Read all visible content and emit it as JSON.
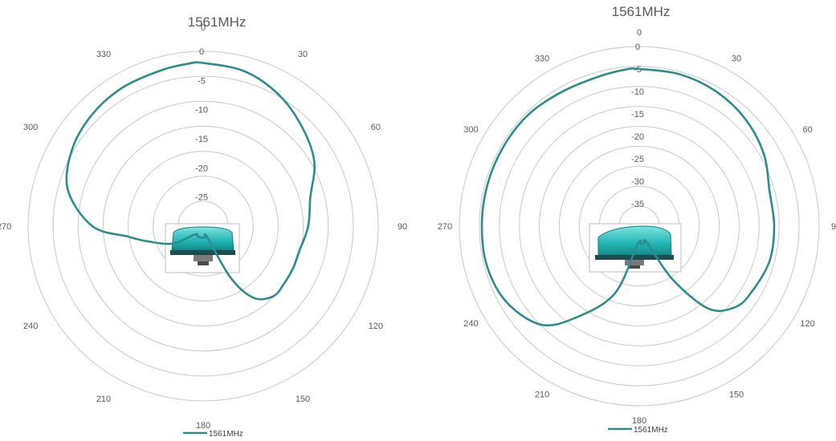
{
  "colors": {
    "series": "#2e8b8f",
    "grid": "#c8c8c8",
    "text": "#595959",
    "antenna": "#33c2c0"
  },
  "chart_data": [
    {
      "type": "polar-line",
      "title": "1561MHz",
      "angle_labels": [
        "0",
        "30",
        "60",
        "90",
        "120",
        "150",
        "180",
        "210",
        "240",
        "270",
        "300",
        "330"
      ],
      "radial_ticks": [
        "0",
        "-5",
        "-10",
        "-15",
        "-20",
        "-25"
      ],
      "rlim": [
        -30,
        0
      ],
      "legend": "bottom",
      "legend_label": "1561MHz",
      "series": [
        {
          "name": "1561MHz",
          "theta": [
            0,
            15,
            30,
            45,
            60,
            75,
            90,
            105,
            115,
            125,
            135,
            145,
            152,
            160,
            170,
            180,
            190,
            200,
            210,
            225,
            240,
            255,
            262,
            270,
            285,
            300,
            315,
            330,
            345,
            355
          ],
          "r": [
            -2,
            -2.5,
            -4,
            -6,
            -8,
            -11,
            -12,
            -13,
            -13,
            -13,
            -13,
            -15,
            -20,
            -28,
            -28,
            -28,
            -28,
            -28,
            -28,
            -28,
            -24,
            -20,
            -17,
            -11,
            -6,
            -4,
            -3,
            -2.5,
            -2.3,
            -2
          ]
        }
      ]
    },
    {
      "type": "polar-line",
      "title": "1561MHz",
      "angle_labels": [
        "0",
        "30",
        "60",
        "9",
        "120",
        "150",
        "180",
        "210",
        "240",
        "270",
        "300",
        "330"
      ],
      "radial_ticks": [
        "0",
        "-5",
        "-10",
        "-15",
        "-20",
        "-25",
        "-30",
        "-35"
      ],
      "rlim": [
        -40,
        0
      ],
      "legend": "bottom",
      "legend_label": "1561MHz",
      "series": [
        {
          "name": "1561MHz",
          "theta": [
            0,
            15,
            30,
            45,
            60,
            75,
            90,
            105,
            120,
            130,
            140,
            148,
            155,
            165,
            175,
            185,
            200,
            215,
            225,
            240,
            255,
            270,
            285,
            300,
            315,
            330,
            345,
            355
          ],
          "r": [
            -5,
            -5,
            -5.5,
            -6.5,
            -8,
            -10,
            -10,
            -10,
            -11,
            -12,
            -16,
            -26,
            -36,
            -36,
            -36,
            -36,
            -24,
            -15,
            -9,
            -6,
            -5,
            -5,
            -5,
            -5,
            -5,
            -5.5,
            -5.5,
            -5
          ]
        }
      ]
    }
  ]
}
